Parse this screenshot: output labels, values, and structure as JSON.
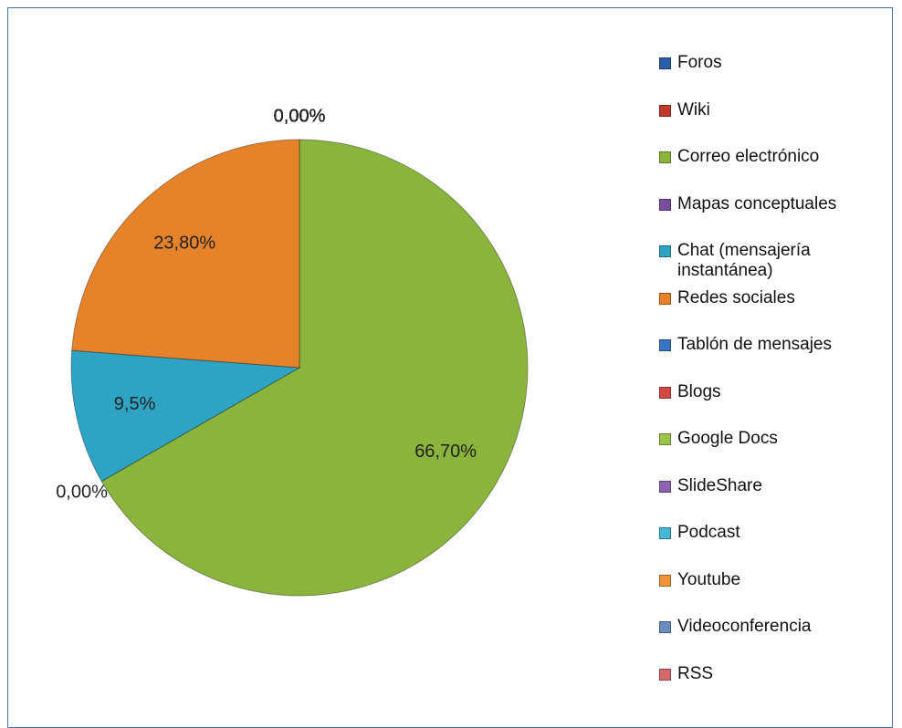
{
  "chart_data": {
    "type": "pie",
    "categories": [
      "Foros",
      "Wiki",
      "Correo electrónico",
      "Mapas conceptuales",
      "Chat (mensajería instantánea)",
      "Redes sociales",
      "Tablón de mensajes",
      "Blogs",
      "Google Docs",
      "SlideShare",
      "Podcast",
      "Youtube",
      "Videoconferencia",
      "RSS"
    ],
    "values": [
      0,
      0,
      66.7,
      0,
      9.5,
      23.8,
      0,
      0,
      0,
      0,
      0,
      0,
      0,
      0
    ],
    "value_labels": [
      "0,00%",
      "0,00%",
      "66,70%",
      "0,00%",
      "9,5%",
      "23,80%",
      "0,00%",
      "0,00%",
      "0,00%",
      "0,00%",
      "0,00%",
      "0,00%",
      "0,00%",
      "0,00%"
    ],
    "colors": [
      "#2a5fa8",
      "#c0392b",
      "#8ab43c",
      "#7a4e9e",
      "#2ea3c3",
      "#e6822a",
      "#3a73c0",
      "#d04a42",
      "#9cc24e",
      "#8c62b0",
      "#45b6d4",
      "#f0943c",
      "#6a8cc0",
      "#d46a6a"
    ],
    "legend": "right"
  }
}
